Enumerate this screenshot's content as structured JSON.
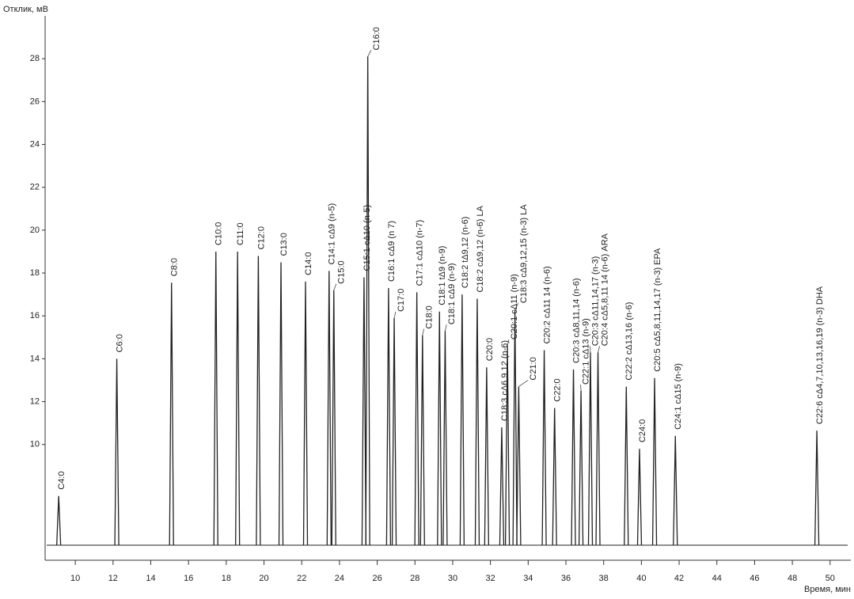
{
  "chart_data": {
    "type": "chromatogram",
    "y_label": "Отклик, мВ",
    "x_label": "Время, мин",
    "xlim": [
      8.4,
      51.1
    ],
    "xticks": [
      10,
      12,
      14,
      16,
      18,
      20,
      22,
      24,
      26,
      28,
      30,
      32,
      34,
      36,
      38,
      40,
      42,
      44,
      46,
      48,
      50
    ],
    "ylim": [
      4.6,
      30
    ],
    "yticks": [
      10,
      12,
      14,
      16,
      18,
      20,
      22,
      24,
      26,
      28
    ],
    "baseline": 5.3,
    "color": "#222222",
    "x": [
      9.12,
      12.2,
      15.1,
      17.45,
      18.6,
      19.7,
      20.9,
      22.2,
      23.45,
      23.7,
      25.3,
      25.5,
      26.6,
      26.9,
      28.1,
      28.4,
      29.3,
      29.6,
      30.5,
      31.3,
      31.8,
      32.6,
      32.9,
      33.3,
      33.5,
      34.85,
      35.4,
      36.4,
      36.8,
      37.3,
      37.7,
      39.2,
      39.9,
      40.7,
      41.8,
      49.3
    ],
    "values": [
      7.6,
      14.0,
      17.55,
      19.0,
      19.0,
      18.8,
      18.5,
      17.6,
      18.1,
      17.2,
      17.8,
      28.1,
      17.3,
      15.9,
      17.1,
      15.1,
      16.2,
      15.3,
      17.0,
      16.8,
      13.6,
      10.8,
      14.6,
      16.3,
      12.7,
      14.4,
      11.7,
      13.5,
      12.5,
      14.3,
      14.3,
      12.7,
      9.8,
      13.1,
      10.4,
      10.65
    ],
    "peak_labels": [
      "C4:0",
      "C6:0",
      "C8:0",
      "C10:0",
      "C11:0",
      "C12:0",
      "C13:0",
      "C14:0",
      "C14:1 cΔ9 (n-5)",
      "C15:0",
      "C15:1 cΔ10 (n-5)",
      "C16:0",
      "C16:1 cΔ9 (n 7)",
      "C17:0",
      "C17:1 cΔ10 (n-7)",
      "C18:0",
      "C18:1 tΔ9 (n-9)",
      "C18:1 cΔ9 (n-9)",
      "C18:2 tΔ9,12 (n-6)",
      "C18:2 cΔ9,12 (n-6) LA",
      "C20:0",
      "C18:3 cΔ6,9,12 (n-6)",
      "C20:1 cΔ11 (n-9)",
      "C18:3 cΔ9,12,15 (n-3) LA",
      "C21:0",
      "C20:2 cΔ11 14 (n-6)",
      "C22:0",
      "C20:3 cΔ8,11,14 (n-6)",
      "C22:1 cΔ13 (n-9)",
      "C20:3 cΔ11,14,17 (n-3)",
      "C20:4 cΔ5,8,11 14 (n-6) ARA",
      "C22:2 cΔ13,16 (n-6)",
      "C24:0",
      "C20:5 cΔ5,8,11,14,17 (n-3) EPA",
      "C24:1 cΔ15 (n-9)",
      "C22:6 cΔ4,7,10,13,16,19 (n-3) DHA"
    ]
  }
}
